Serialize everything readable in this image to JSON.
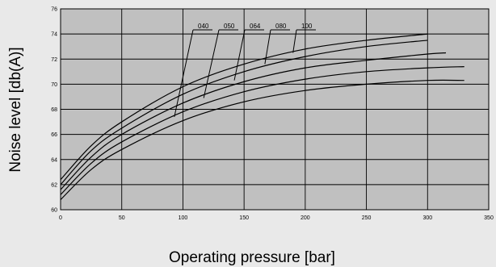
{
  "chart_data": {
    "type": "line",
    "title": "",
    "xlabel": "Operating pressure [bar]",
    "ylabel": "Noise level [db(A)]",
    "xlim": [
      0,
      350
    ],
    "ylim": [
      60,
      76
    ],
    "xticks": [
      "0",
      "50",
      "100",
      "150",
      "200",
      "250",
      "300",
      "350"
    ],
    "yticks": [
      "60",
      "62",
      "64",
      "66",
      "68",
      "70",
      "72",
      "74",
      "76"
    ],
    "grid": true,
    "colors": {
      "plot_bg": "#c0c0c0",
      "page_bg": "#e9e9e9",
      "line": "#000000",
      "grid": "#000000"
    },
    "series": [
      {
        "name": "040",
        "x": [
          0,
          25,
          50,
          100,
          150,
          200,
          250,
          300
        ],
        "y": [
          62.4,
          65.1,
          67.0,
          69.8,
          71.6,
          72.8,
          73.5,
          74.0
        ]
      },
      {
        "name": "050",
        "x": [
          0,
          25,
          50,
          100,
          150,
          200,
          250,
          300
        ],
        "y": [
          62.0,
          64.7,
          66.5,
          69.2,
          71.0,
          72.2,
          73.0,
          73.5
        ]
      },
      {
        "name": "064",
        "x": [
          0,
          25,
          50,
          100,
          150,
          200,
          250,
          300,
          315
        ],
        "y": [
          61.6,
          64.2,
          66.0,
          68.5,
          70.2,
          71.3,
          71.9,
          72.4,
          72.5
        ]
      },
      {
        "name": "080",
        "x": [
          0,
          25,
          50,
          100,
          150,
          200,
          250,
          300,
          330
        ],
        "y": [
          61.2,
          63.7,
          65.4,
          67.8,
          69.4,
          70.4,
          71.0,
          71.3,
          71.4
        ]
      },
      {
        "name": "100",
        "x": [
          0,
          25,
          50,
          100,
          150,
          200,
          250,
          300,
          330
        ],
        "y": [
          60.8,
          63.2,
          64.8,
          67.1,
          68.6,
          69.5,
          70.0,
          70.3,
          70.3
        ]
      }
    ],
    "series_label_leaders": [
      {
        "name": "040",
        "anchor_x": 93,
        "anchor_y": 67.4
      },
      {
        "name": "050",
        "anchor_x": 117,
        "anchor_y": 68.9
      },
      {
        "name": "064",
        "anchor_x": 142,
        "anchor_y": 70.3
      },
      {
        "name": "080",
        "anchor_x": 167,
        "anchor_y": 71.6
      },
      {
        "name": "100",
        "anchor_x": 190,
        "anchor_y": 72.5
      }
    ]
  }
}
